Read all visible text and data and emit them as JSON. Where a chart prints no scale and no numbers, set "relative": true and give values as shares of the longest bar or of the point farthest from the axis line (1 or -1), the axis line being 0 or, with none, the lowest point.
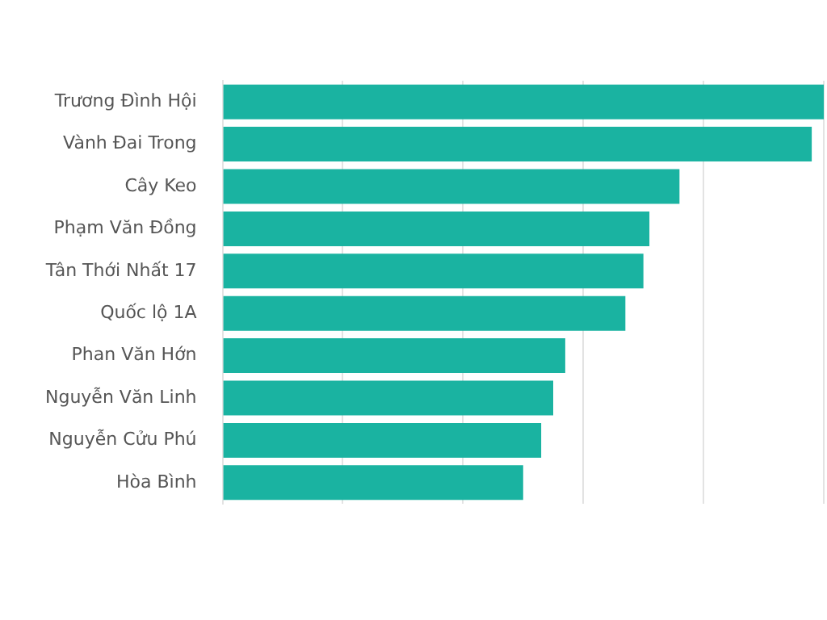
{
  "chart_data": {
    "type": "bar",
    "orientation": "horizontal",
    "relative": true,
    "grid": "x",
    "legend": false,
    "categories": [
      "Trương Đình Hội",
      "Vành Đai Trong",
      "Cây Keo",
      "Phạm Văn Đồng",
      "Tân Thới Nhất 17",
      "Quốc lộ 1A",
      "Phan Văn Hớn",
      "Nguyễn Văn Linh",
      "Nguyễn Cửu Phú",
      "Hòa Bình"
    ],
    "values": [
      1,
      0.98,
      0.76,
      0.71,
      0.7,
      0.67,
      0.57,
      0.55,
      0.53,
      0.5
    ],
    "color": "#1ab3a1"
  }
}
